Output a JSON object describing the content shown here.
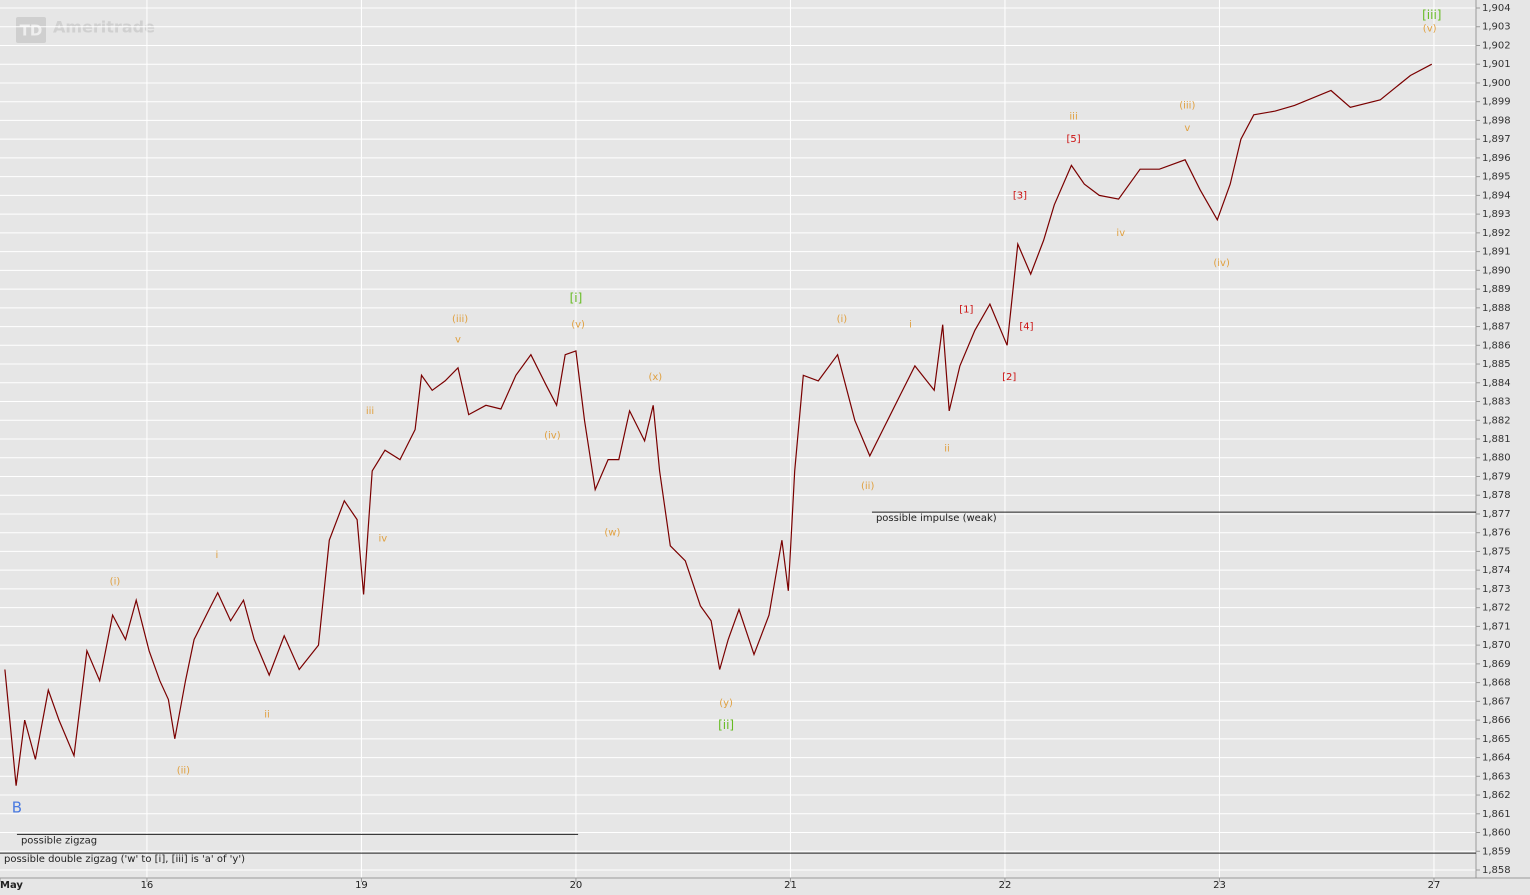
{
  "chart_data": {
    "type": "line",
    "watermark": {
      "logo": "TD",
      "text": "Ameritrade"
    },
    "xlim": [
      0.315,
      7.196
    ],
    "ylim": [
      1858,
      1904
    ],
    "xticks": [
      {
        "value": 0.315,
        "label": "May"
      },
      {
        "value": 1,
        "label": "16"
      },
      {
        "value": 2,
        "label": "19"
      },
      {
        "value": 3,
        "label": "20"
      },
      {
        "value": 4,
        "label": "21"
      },
      {
        "value": 5,
        "label": "22"
      },
      {
        "value": 6,
        "label": "23"
      },
      {
        "value": 7,
        "label": "27"
      }
    ],
    "yticks": [
      {
        "value": 1858,
        "label": "1,858"
      },
      {
        "value": 1859,
        "label": "1,859"
      },
      {
        "value": 1860,
        "label": "1,860"
      },
      {
        "value": 1861,
        "label": "1,861"
      },
      {
        "value": 1862,
        "label": "1,862"
      },
      {
        "value": 1863,
        "label": "1,863"
      },
      {
        "value": 1864,
        "label": "1,864"
      },
      {
        "value": 1865,
        "label": "1,865"
      },
      {
        "value": 1866,
        "label": "1,866"
      },
      {
        "value": 1867,
        "label": "1,867"
      },
      {
        "value": 1868,
        "label": "1,868"
      },
      {
        "value": 1869,
        "label": "1,869"
      },
      {
        "value": 1870,
        "label": "1,870"
      },
      {
        "value": 1871,
        "label": "1,871"
      },
      {
        "value": 1872,
        "label": "1,872"
      },
      {
        "value": 1873,
        "label": "1,873"
      },
      {
        "value": 1874,
        "label": "1,874"
      },
      {
        "value": 1875,
        "label": "1,875"
      },
      {
        "value": 1876,
        "label": "1,876"
      },
      {
        "value": 1877,
        "label": "1,877"
      },
      {
        "value": 1878,
        "label": "1,878"
      },
      {
        "value": 1879,
        "label": "1,879"
      },
      {
        "value": 1880,
        "label": "1,880"
      },
      {
        "value": 1881,
        "label": "1,881"
      },
      {
        "value": 1882,
        "label": "1,882"
      },
      {
        "value": 1883,
        "label": "1,883"
      },
      {
        "value": 1884,
        "label": "1,884"
      },
      {
        "value": 1885,
        "label": "1,885"
      },
      {
        "value": 1886,
        "label": "1,886"
      },
      {
        "value": 1887,
        "label": "1,887"
      },
      {
        "value": 1888,
        "label": "1,888"
      },
      {
        "value": 1889,
        "label": "1,889"
      },
      {
        "value": 1890,
        "label": "1,890"
      },
      {
        "value": 1891,
        "label": "1,891"
      },
      {
        "value": 1892,
        "label": "1,892"
      },
      {
        "value": 1893,
        "label": "1,893"
      },
      {
        "value": 1894,
        "label": "1,894"
      },
      {
        "value": 1895,
        "label": "1,895"
      },
      {
        "value": 1896,
        "label": "1,896"
      },
      {
        "value": 1897,
        "label": "1,897"
      },
      {
        "value": 1898,
        "label": "1,898"
      },
      {
        "value": 1899,
        "label": "1,899"
      },
      {
        "value": 1900,
        "label": "1,900"
      },
      {
        "value": 1901,
        "label": "1,901"
      },
      {
        "value": 1902,
        "label": "1,902"
      },
      {
        "value": 1903,
        "label": "1,903"
      },
      {
        "value": 1904,
        "label": "1,904"
      }
    ],
    "grid": true,
    "series": [
      {
        "color": "#7a0000",
        "x": [
          0.338,
          0.37,
          0.39,
          0.43,
          0.48,
          0.54,
          0.59,
          0.66,
          0.72,
          0.78,
          0.84,
          0.9,
          0.95,
          1.01,
          1.06,
          1.1,
          1.13,
          1.18,
          1.22,
          1.29,
          1.33,
          1.39,
          1.45,
          1.5,
          1.57,
          1.64,
          1.71,
          1.8,
          1.85,
          1.92,
          1.98,
          2.01,
          2.05,
          2.11,
          2.18,
          2.25,
          2.28,
          2.33,
          2.39,
          2.45,
          2.5,
          2.58,
          2.65,
          2.72,
          2.79,
          2.86,
          2.91,
          2.95,
          3.0,
          3.04,
          3.09,
          3.15,
          3.2,
          3.25,
          3.32,
          3.36,
          3.39,
          3.44,
          3.51,
          3.58,
          3.63,
          3.67,
          3.71,
          3.76,
          3.83,
          3.9,
          3.96,
          3.99,
          4.02,
          4.06,
          4.13,
          4.22,
          4.3,
          4.37,
          4.44,
          4.51,
          4.58,
          4.67,
          4.71,
          4.74,
          4.79,
          4.86,
          4.93,
          5.01,
          5.06,
          5.12,
          5.18,
          5.23,
          5.31,
          5.37,
          5.44,
          5.53,
          5.63,
          5.72,
          5.84,
          5.91,
          5.99,
          6.05,
          6.1,
          6.16,
          6.26,
          6.35,
          6.52,
          6.61,
          6.75,
          6.89,
          6.99
        ],
        "values": [
          1868.7,
          1864.9,
          1862.5,
          1866.0,
          1863.9,
          1867.6,
          1866.0,
          1864.1,
          1869.7,
          1868.1,
          1871.6,
          1870.3,
          1872.4,
          1869.7,
          1868.1,
          1867.1,
          1865.0,
          1868.1,
          1870.3,
          1871.9,
          1872.8,
          1871.3,
          1872.4,
          1870.3,
          1868.4,
          1870.5,
          1868.7,
          1870.0,
          1875.6,
          1877.7,
          1876.7,
          1872.7,
          1879.3,
          1880.4,
          1879.9,
          1881.5,
          1884.4,
          1883.6,
          1884.1,
          1884.8,
          1882.3,
          1882.8,
          1882.6,
          1884.4,
          1885.5,
          1883.9,
          1882.8,
          1885.5,
          1885.7,
          1882.0,
          1878.3,
          1879.9,
          1879.9,
          1882.5,
          1880.9,
          1882.8,
          1879.3,
          1875.3,
          1874.5,
          1872.1,
          1871.3,
          1868.7,
          1870.3,
          1871.9,
          1869.5,
          1871.6,
          1875.6,
          1872.9,
          1879.3,
          1884.4,
          1884.1,
          1885.5,
          1882.0,
          1880.1,
          1881.7,
          1883.3,
          1884.9,
          1883.6,
          1887.1,
          1882.5,
          1884.9,
          1886.8,
          1888.2,
          1886.0,
          1891.4,
          1889.8,
          1891.6,
          1893.5,
          1895.6,
          1894.6,
          1894.0,
          1893.8,
          1895.4,
          1895.4,
          1895.9,
          1894.3,
          1892.7,
          1894.6,
          1897.0,
          1898.3,
          1898.5,
          1898.8,
          1899.6,
          1898.7,
          1899.1,
          1900.4,
          1901.0
        ]
      }
    ],
    "annotations": [
      {
        "label": "B",
        "color": "#4a7ae0",
        "x": 0.394,
        "y": 1861.3
      },
      {
        "label": "(i)",
        "color": "#e0a040",
        "x": 0.851,
        "y": 1873.4
      },
      {
        "label": "i",
        "color": "#e0a040",
        "x": 1.326,
        "y": 1874.8
      },
      {
        "label": "(ii)",
        "color": "#e0a040",
        "x": 1.17,
        "y": 1863.3
      },
      {
        "label": "ii",
        "color": "#e0a040",
        "x": 1.56,
        "y": 1866.3
      },
      {
        "label": "iii",
        "color": "#e0a040",
        "x": 2.04,
        "y": 1882.5
      },
      {
        "label": "iv",
        "color": "#e0a040",
        "x": 2.1,
        "y": 1875.7
      },
      {
        "label": "(iii)",
        "color": "#e0a040",
        "x": 2.46,
        "y": 1887.4
      },
      {
        "label": "v",
        "color": "#e0a040",
        "x": 2.45,
        "y": 1886.3
      },
      {
        "label": "(iv)",
        "color": "#e0a040",
        "x": 2.89,
        "y": 1881.2
      },
      {
        "label": "[i]",
        "color": "#66bb22",
        "x": 3.0,
        "y": 1888.5
      },
      {
        "label": "(v)",
        "color": "#e0a040",
        "x": 3.01,
        "y": 1887.1
      },
      {
        "label": "(w)",
        "color": "#e0a040",
        "x": 3.17,
        "y": 1876.0
      },
      {
        "label": "(x)",
        "color": "#e0a040",
        "x": 3.37,
        "y": 1884.3
      },
      {
        "label": "(y)",
        "color": "#e0a040",
        "x": 3.7,
        "y": 1866.9
      },
      {
        "label": "[ii]",
        "color": "#66bb22",
        "x": 3.7,
        "y": 1865.7
      },
      {
        "label": "(i)",
        "color": "#e0a040",
        "x": 4.24,
        "y": 1887.4
      },
      {
        "label": "(ii)",
        "color": "#e0a040",
        "x": 4.36,
        "y": 1878.5
      },
      {
        "label": "i",
        "color": "#e0a040",
        "x": 4.56,
        "y": 1887.1
      },
      {
        "label": "ii",
        "color": "#e0a040",
        "x": 4.73,
        "y": 1880.5
      },
      {
        "label": "[1]",
        "color": "#cc1111",
        "x": 4.82,
        "y": 1887.9
      },
      {
        "label": "[2]",
        "color": "#cc1111",
        "x": 5.02,
        "y": 1884.3
      },
      {
        "label": "[3]",
        "color": "#cc1111",
        "x": 5.07,
        "y": 1894.0
      },
      {
        "label": "[4]",
        "color": "#cc1111",
        "x": 5.1,
        "y": 1887.0
      },
      {
        "label": "[5]",
        "color": "#cc1111",
        "x": 5.32,
        "y": 1897.0
      },
      {
        "label": "iii",
        "color": "#e0a040",
        "x": 5.32,
        "y": 1898.2
      },
      {
        "label": "iv",
        "color": "#e0a040",
        "x": 5.54,
        "y": 1892.0
      },
      {
        "label": "(iii)",
        "color": "#e0a040",
        "x": 5.85,
        "y": 1898.8
      },
      {
        "label": "v",
        "color": "#e0a040",
        "x": 5.85,
        "y": 1897.6
      },
      {
        "label": "(iv)",
        "color": "#e0a040",
        "x": 6.01,
        "y": 1890.4
      },
      {
        "label": "[iii]",
        "color": "#66bb22",
        "x": 6.99,
        "y": 1903.6
      },
      {
        "label": "(v)",
        "color": "#e0a040",
        "x": 6.98,
        "y": 1902.9
      }
    ],
    "levels": [
      {
        "label": "possible zigzag",
        "y": 1859.9,
        "x": [
          0.394,
          3.01
        ]
      },
      {
        "label": "possible double zigzag ('w' to [i], [iii] is 'a' of 'y')",
        "y": 1858.9,
        "x": [
          0.315,
          7.196
        ]
      },
      {
        "label": "possible impulse (weak)",
        "y": 1877.1,
        "x": [
          4.38,
          7.196
        ]
      }
    ]
  }
}
